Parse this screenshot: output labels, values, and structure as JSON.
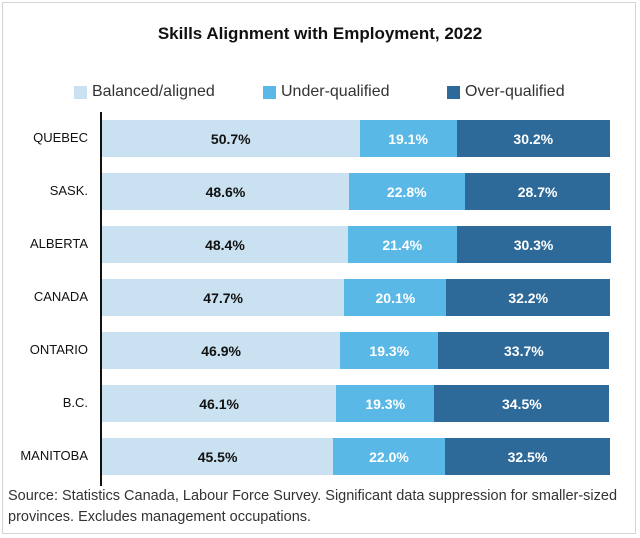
{
  "chart_data": {
    "type": "bar",
    "orientation": "horizontal",
    "stacked": true,
    "title": "Skills Alignment with Employment, 2022",
    "categories": [
      "QUEBEC",
      "SASK.",
      "ALBERTA",
      "CANADA",
      "ONTARIO",
      "B.C.",
      "MANITOBA"
    ],
    "series": [
      {
        "name": "Balanced/aligned",
        "color": "#c9e1f0",
        "label_color": "#111111",
        "values": [
          50.7,
          48.6,
          48.4,
          47.7,
          46.9,
          46.1,
          45.5
        ]
      },
      {
        "name": "Under-qualified",
        "color": "#5ab8e6",
        "label_color": "#ffffff",
        "values": [
          19.1,
          22.8,
          21.4,
          20.1,
          19.3,
          19.3,
          22.0
        ]
      },
      {
        "name": "Over-qualified",
        "color": "#2d6a99",
        "label_color": "#ffffff",
        "values": [
          30.2,
          28.7,
          30.3,
          32.2,
          33.7,
          34.5,
          32.5
        ]
      }
    ],
    "value_suffix": "%",
    "xlim": [
      0,
      100
    ],
    "legend_position": "top",
    "grid": false
  },
  "source_note": "Source: Statistics Canada, Labour Force Survey. Significant data suppression for smaller-sized provinces. Excludes management occupations."
}
